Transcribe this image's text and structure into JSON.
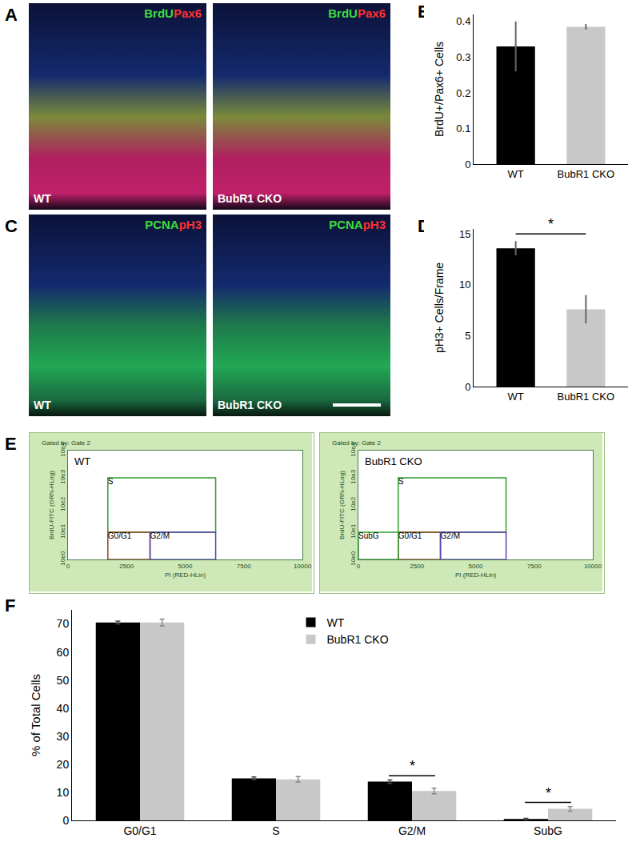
{
  "chart_data": [
    {
      "panel": "A",
      "type": "image",
      "stains": [
        {
          "text": "BrdU",
          "color": "#3ddc3d"
        },
        {
          "text": "Pax6",
          "color": "#ff3030"
        }
      ],
      "images": [
        {
          "label": "WT"
        },
        {
          "label": "BubR1 CKO"
        }
      ]
    },
    {
      "panel": "B",
      "type": "bar",
      "categories": [
        "WT",
        "BubR1 CKO"
      ],
      "values": [
        0.33,
        0.385
      ],
      "errors": [
        0.07,
        0.008
      ],
      "colors": [
        "#000000",
        "#c8c8c8"
      ],
      "ylabel": "BrdU+/Pax6+ Cells",
      "ylim": [
        0,
        0.42
      ],
      "yticks": [
        0,
        0.1,
        0.2,
        0.3,
        0.4
      ]
    },
    {
      "panel": "C",
      "type": "image",
      "stains": [
        {
          "text": "PCNA",
          "color": "#3ddc3d"
        },
        {
          "text": "pH3",
          "color": "#ff3030"
        }
      ],
      "images": [
        {
          "label": "WT"
        },
        {
          "label": "BubR1 CKO"
        }
      ]
    },
    {
      "panel": "D",
      "type": "bar",
      "categories": [
        "WT",
        "BubR1 CKO"
      ],
      "values": [
        13.6,
        7.6
      ],
      "errors": [
        0.7,
        1.4
      ],
      "colors": [
        "#000000",
        "#c8c8c8"
      ],
      "ylabel": "pH3+ Cells/Frame",
      "ylim": [
        0,
        15.5
      ],
      "yticks": [
        0,
        5,
        10,
        15
      ],
      "annotations": [
        {
          "text": "*",
          "between": [
            "WT",
            "BubR1 CKO"
          ]
        }
      ]
    },
    {
      "panel": "E",
      "type": "scatter",
      "log": "y",
      "header": "Gated by: Gate 2",
      "xlabel": "PI (RED-HLin)",
      "ylabel": "BrdU-FITC (GRN-HLog)",
      "xlim": [
        0,
        10000
      ],
      "xticks": [
        0,
        2500,
        5000,
        7500,
        10000
      ],
      "ylim": [
        1,
        10000
      ],
      "yticks": [
        {
          "value": 1,
          "label": "10e0"
        },
        {
          "value": 10,
          "label": "10e1"
        },
        {
          "value": 100,
          "label": "10e2"
        },
        {
          "value": 1000,
          "label": "10e3"
        },
        {
          "value": 10000,
          "label": "10e4"
        }
      ],
      "plots": [
        {
          "label": "WT",
          "gates": [
            {
              "label": "S",
              "color": "#2e9e2e",
              "x": [
                1700,
                6300
              ],
              "y": [
                10,
                1000
              ]
            },
            {
              "label": "G0/G1",
              "color": "#8b4a1c",
              "x": [
                1700,
                3500
              ],
              "y": [
                1,
                10
              ]
            },
            {
              "label": "G2/M",
              "color": "#5a3fb0",
              "x": [
                3500,
                6300
              ],
              "y": [
                1,
                10
              ]
            }
          ]
        },
        {
          "label": "BubR1 CKO",
          "gates": [
            {
              "label": "S",
              "color": "#2e9e2e",
              "x": [
                1700,
                6300
              ],
              "y": [
                10,
                1000
              ]
            },
            {
              "label": "G0/G1",
              "color": "#8b4a1c",
              "x": [
                1700,
                3500
              ],
              "y": [
                1,
                10
              ]
            },
            {
              "label": "G2/M",
              "color": "#5a3fb0",
              "x": [
                3500,
                6300
              ],
              "y": [
                1,
                10
              ]
            },
            {
              "label": "SubG",
              "color": "#2e9e2e",
              "x": [
                0,
                1700
              ],
              "y": [
                1,
                10
              ]
            }
          ]
        }
      ]
    },
    {
      "panel": "F",
      "type": "bar",
      "categories": [
        "G0/G1",
        "S",
        "G2/M",
        "SubG"
      ],
      "series": [
        {
          "name": "WT",
          "color": "#000000",
          "values": [
            70.5,
            15,
            13.8,
            0.5
          ],
          "errors": [
            0.5,
            0.5,
            0.6,
            0.2
          ]
        },
        {
          "name": "BubR1 CKO",
          "color": "#c8c8c8",
          "values": [
            70.5,
            14.6,
            10.5,
            4.1
          ],
          "errors": [
            1.2,
            1.0,
            1.0,
            0.8
          ]
        }
      ],
      "ylabel": "% of Total Cells",
      "ylim": [
        0,
        75
      ],
      "yticks": [
        0,
        10,
        20,
        30,
        40,
        50,
        60,
        70
      ],
      "legend": "top",
      "annotations": [
        {
          "text": "*",
          "category": "G2/M"
        },
        {
          "text": "*",
          "category": "SubG"
        }
      ]
    }
  ]
}
